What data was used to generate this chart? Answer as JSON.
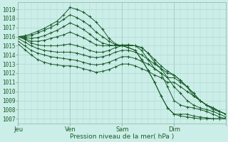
{
  "xlabel": "Pression niveau de la mer( hPa )",
  "ylim": [
    1006.5,
    1019.8
  ],
  "xlim": [
    0,
    96
  ],
  "yticks": [
    1007,
    1008,
    1009,
    1010,
    1011,
    1012,
    1013,
    1014,
    1015,
    1016,
    1017,
    1018,
    1019
  ],
  "xtick_positions": [
    0,
    24,
    48,
    72,
    96
  ],
  "xtick_labels": [
    "Jeu",
    "Ven",
    "Sam",
    "Dim",
    ""
  ],
  "background_color": "#cceee8",
  "grid_color": "#aad8d0",
  "line_color": "#1a5c2a",
  "marker": "+",
  "markersize": 3,
  "linewidth": 0.7,
  "lines": [
    {
      "x": [
        0,
        3,
        6,
        9,
        12,
        15,
        18,
        21,
        24,
        27,
        30,
        33,
        36,
        39,
        42,
        45,
        48,
        51,
        54,
        57,
        60,
        63,
        66,
        69,
        72,
        75,
        78,
        81,
        84,
        87,
        90,
        93,
        96
      ],
      "y": [
        1016.0,
        1016.1,
        1016.3,
        1016.6,
        1016.9,
        1017.3,
        1017.7,
        1018.4,
        1019.2,
        1019.0,
        1018.7,
        1018.2,
        1017.6,
        1016.8,
        1015.8,
        1015.2,
        1015.0,
        1014.8,
        1014.5,
        1013.5,
        1012.3,
        1011.0,
        1009.5,
        1008.2,
        1007.5,
        1007.3,
        1007.2,
        1007.1,
        1007.0,
        1007.0,
        1007.0,
        1007.0,
        1007.0
      ]
    },
    {
      "x": [
        0,
        3,
        6,
        9,
        12,
        15,
        18,
        21,
        24,
        27,
        30,
        33,
        36,
        39,
        42,
        45,
        48,
        51,
        54,
        57,
        60,
        63,
        66,
        69,
        72,
        75,
        78,
        81,
        84,
        87,
        90,
        93,
        96
      ],
      "y": [
        1016.0,
        1016.0,
        1016.1,
        1016.4,
        1016.7,
        1017.0,
        1017.4,
        1017.9,
        1018.4,
        1018.1,
        1017.7,
        1017.2,
        1016.5,
        1016.0,
        1015.5,
        1015.1,
        1015.0,
        1014.8,
        1014.5,
        1013.5,
        1012.3,
        1011.0,
        1009.5,
        1008.2,
        1007.5,
        1007.5,
        1007.5,
        1007.3,
        1007.2,
        1007.1,
        1007.0,
        1007.0,
        1007.0
      ]
    },
    {
      "x": [
        0,
        3,
        6,
        9,
        12,
        15,
        18,
        21,
        24,
        27,
        30,
        33,
        36,
        39,
        42,
        45,
        48,
        51,
        54,
        57,
        60,
        63,
        66,
        69,
        72,
        75,
        78,
        81,
        84,
        87,
        90,
        93,
        96
      ],
      "y": [
        1016.0,
        1015.9,
        1015.8,
        1015.9,
        1016.1,
        1016.4,
        1016.7,
        1017.1,
        1017.5,
        1017.2,
        1016.8,
        1016.3,
        1015.7,
        1015.3,
        1015.1,
        1015.0,
        1015.0,
        1015.0,
        1015.0,
        1014.5,
        1013.5,
        1012.5,
        1012.0,
        1010.5,
        1009.0,
        1008.5,
        1008.3,
        1008.2,
        1008.0,
        1007.8,
        1007.5,
        1007.2,
        1007.0
      ]
    },
    {
      "x": [
        0,
        3,
        6,
        9,
        12,
        15,
        18,
        21,
        24,
        27,
        30,
        33,
        36,
        39,
        42,
        45,
        48,
        51,
        54,
        57,
        60,
        63,
        66,
        69,
        72,
        75,
        78,
        81,
        84,
        87,
        90,
        93,
        96
      ],
      "y": [
        1016.0,
        1015.8,
        1015.5,
        1015.5,
        1015.6,
        1015.8,
        1016.0,
        1016.2,
        1016.5,
        1016.2,
        1015.9,
        1015.5,
        1015.1,
        1015.0,
        1015.0,
        1015.0,
        1015.1,
        1015.1,
        1015.0,
        1014.8,
        1014.2,
        1013.2,
        1012.5,
        1011.5,
        1010.5,
        1009.8,
        1009.0,
        1008.5,
        1008.2,
        1008.0,
        1007.8,
        1007.5,
        1007.2
      ]
    },
    {
      "x": [
        0,
        3,
        6,
        9,
        12,
        15,
        18,
        21,
        24,
        27,
        30,
        33,
        36,
        39,
        42,
        45,
        48,
        51,
        54,
        57,
        60,
        63,
        66,
        69,
        72,
        75,
        78,
        81,
        84,
        87,
        90,
        93,
        96
      ],
      "y": [
        1016.0,
        1015.7,
        1015.3,
        1015.1,
        1015.0,
        1015.0,
        1015.0,
        1015.1,
        1015.2,
        1015.0,
        1014.8,
        1014.5,
        1014.3,
        1014.3,
        1014.5,
        1014.8,
        1015.0,
        1015.1,
        1015.0,
        1014.8,
        1014.2,
        1013.5,
        1012.8,
        1012.2,
        1011.8,
        1011.2,
        1010.5,
        1009.8,
        1009.0,
        1008.5,
        1008.2,
        1007.8,
        1007.5
      ]
    },
    {
      "x": [
        0,
        3,
        6,
        9,
        12,
        15,
        18,
        21,
        24,
        27,
        30,
        33,
        36,
        39,
        42,
        45,
        48,
        51,
        54,
        57,
        60,
        63,
        66,
        69,
        72,
        75,
        78,
        81,
        84,
        87,
        90,
        93,
        96
      ],
      "y": [
        1015.8,
        1015.4,
        1015.0,
        1014.7,
        1014.5,
        1014.4,
        1014.3,
        1014.3,
        1014.3,
        1014.2,
        1014.0,
        1013.8,
        1013.7,
        1013.8,
        1014.0,
        1014.3,
        1014.5,
        1014.5,
        1014.3,
        1014.0,
        1013.5,
        1013.0,
        1012.5,
        1012.0,
        1011.8,
        1011.2,
        1010.5,
        1009.5,
        1009.0,
        1008.5,
        1008.2,
        1007.8,
        1007.5
      ]
    },
    {
      "x": [
        0,
        3,
        6,
        9,
        12,
        15,
        18,
        21,
        24,
        27,
        30,
        33,
        36,
        39,
        42,
        45,
        48,
        51,
        54,
        57,
        60,
        63,
        66,
        69,
        72,
        75,
        78,
        81,
        84,
        87,
        90,
        93,
        96
      ],
      "y": [
        1015.5,
        1015.0,
        1014.5,
        1014.2,
        1014.0,
        1013.8,
        1013.7,
        1013.6,
        1013.5,
        1013.4,
        1013.2,
        1013.0,
        1012.9,
        1013.0,
        1013.2,
        1013.5,
        1013.8,
        1013.8,
        1013.6,
        1013.3,
        1013.0,
        1012.5,
        1012.0,
        1011.5,
        1011.5,
        1011.0,
        1010.5,
        1009.8,
        1009.0,
        1008.5,
        1008.2,
        1007.8,
        1007.5
      ]
    },
    {
      "x": [
        0,
        3,
        6,
        9,
        12,
        15,
        18,
        21,
        24,
        27,
        30,
        33,
        36,
        39,
        42,
        45,
        48,
        51,
        54,
        57,
        60,
        63,
        66,
        69,
        72,
        75,
        78,
        81,
        84,
        87,
        90,
        93,
        96
      ],
      "y": [
        1015.2,
        1014.6,
        1014.0,
        1013.5,
        1013.2,
        1013.0,
        1012.9,
        1012.8,
        1012.8,
        1012.7,
        1012.5,
        1012.3,
        1012.1,
        1012.2,
        1012.4,
        1012.7,
        1013.0,
        1013.0,
        1012.8,
        1012.5,
        1012.2,
        1011.8,
        1011.5,
        1011.0,
        1011.0,
        1010.5,
        1010.0,
        1009.5,
        1009.0,
        1008.5,
        1008.0,
        1007.8,
        1007.5
      ]
    }
  ]
}
